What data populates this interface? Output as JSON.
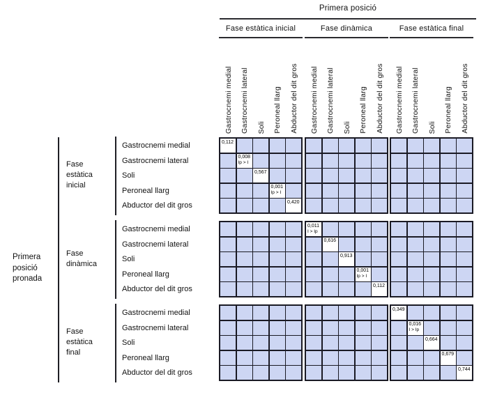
{
  "title": "Primera posició",
  "row_group_title": "Primera\nposició\npronada",
  "column_phases": [
    "Fase estàtica inicial",
    "Fase dinàmica",
    "Fase estàtica final"
  ],
  "row_phases": [
    "Fase\nestàtica\ninicial",
    "Fase\ndinàmica",
    "Fase\nestàtica\nfinal"
  ],
  "muscles": [
    "Gastrocnemi medial",
    "Gastrocnemi lateral",
    "Soli",
    "Peroneal llarg",
    "Abductor del dit gros"
  ],
  "diagonal": [
    [
      {
        "value": "0,112"
      },
      {
        "value": "0,008",
        "note": "Ip > I"
      },
      {
        "value": "0,567"
      },
      {
        "value": "0,001",
        "note": "Ip > I"
      },
      {
        "value": "0,420"
      }
    ],
    [
      {
        "value": "0,011",
        "note": "I > Ip"
      },
      {
        "value": "0,616"
      },
      {
        "value": "0,913"
      },
      {
        "value": "0,001",
        "note": "Ip > I"
      },
      {
        "value": "0,112"
      }
    ],
    [
      {
        "value": "0,349"
      },
      {
        "value": "0,016",
        "note": "I > Ip"
      },
      {
        "value": "0,664"
      },
      {
        "value": "0,679"
      },
      {
        "value": "0,744"
      }
    ]
  ],
  "colors": {
    "cell_blue": "#cdd6f3",
    "grid_line": "#1a1a24",
    "diagonal_cell": "#ffffff"
  }
}
